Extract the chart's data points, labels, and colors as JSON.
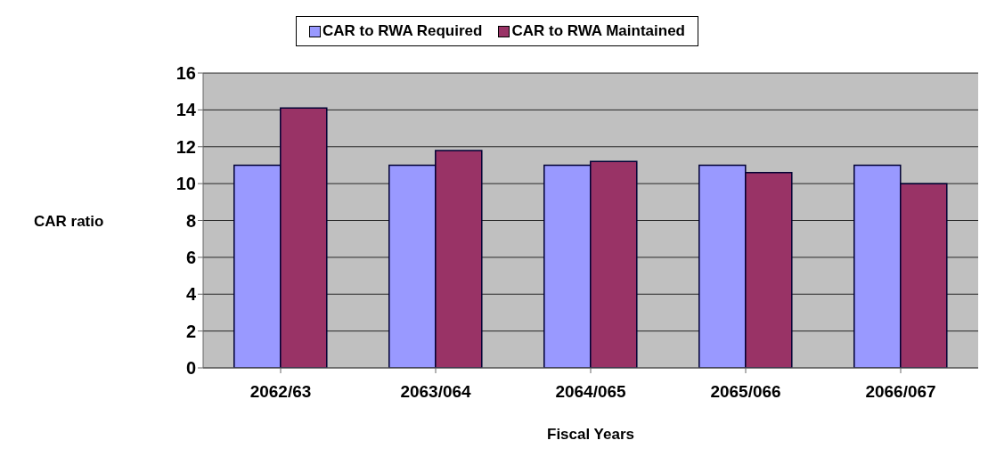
{
  "chart_data": {
    "type": "bar",
    "xlabel": "Fiscal Years",
    "ylabel": "CAR ratio",
    "categories": [
      "2062/63",
      "2063/064",
      "2064/065",
      "2065/066",
      "2066/067"
    ],
    "series": [
      {
        "name": "CAR to RWA Required",
        "color": "#9999ff",
        "values": [
          11,
          11,
          11,
          11,
          11
        ]
      },
      {
        "name": "CAR to RWA Maintained",
        "color": "#993366",
        "values": [
          14.1,
          11.8,
          11.2,
          10.6,
          10.0
        ]
      }
    ],
    "ylim": [
      0,
      16
    ],
    "yticks": [
      0,
      2,
      4,
      6,
      8,
      10,
      12,
      14,
      16
    ],
    "grid": "y",
    "legend": "top"
  }
}
